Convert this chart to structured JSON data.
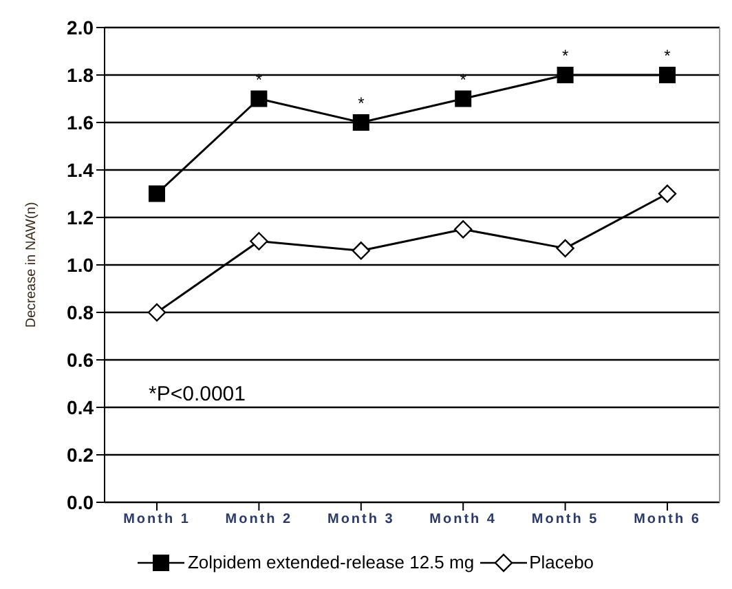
{
  "chart_data": {
    "type": "line",
    "ylabel": "Decrease in NAW(n)",
    "categories": [
      "Month 1",
      "Month 2",
      "Month 3",
      "Month 4",
      "Month 5",
      "Month 6"
    ],
    "series": [
      {
        "name": "Zolpidem extended-release 12.5 mg",
        "color": "#000000",
        "marker": "square",
        "values": [
          1.3,
          1.7,
          1.6,
          1.7,
          1.8,
          1.8
        ]
      },
      {
        "name": "Placebo",
        "color": "#000000",
        "marker": "diamond",
        "values": [
          0.8,
          1.1,
          1.06,
          1.15,
          1.07,
          1.3
        ]
      }
    ],
    "ylim": [
      0,
      2
    ],
    "yticks": [
      {
        "value": 0,
        "label": "0.0"
      },
      {
        "value": 0.2,
        "label": "0.2"
      },
      {
        "value": 0.4,
        "label": "0.4"
      },
      {
        "value": 0.6,
        "label": "0.6"
      },
      {
        "value": 0.8,
        "label": "0.8"
      },
      {
        "value": 1,
        "label": "1.0"
      },
      {
        "value": 1.2,
        "label": "1.2"
      },
      {
        "value": 1.4,
        "label": "1.4"
      },
      {
        "value": 1.6,
        "label": "1.6"
      },
      {
        "value": 1.8,
        "label": "1.8"
      },
      {
        "value": 2,
        "label": "2.0"
      }
    ],
    "grid": "y",
    "legend": "bottom",
    "line_style": "solid",
    "annotations": [
      {
        "text": "*",
        "x": "Month 2",
        "y": 1.7
      },
      {
        "text": "*",
        "x": "Month 3",
        "y": 1.6
      },
      {
        "text": "*",
        "x": "Month 4",
        "y": 1.7
      },
      {
        "text": "*",
        "x": "Month 5",
        "y": 1.8
      },
      {
        "text": "*",
        "x": "Month 6",
        "y": 1.8
      },
      "*P<0.0001"
    ]
  }
}
